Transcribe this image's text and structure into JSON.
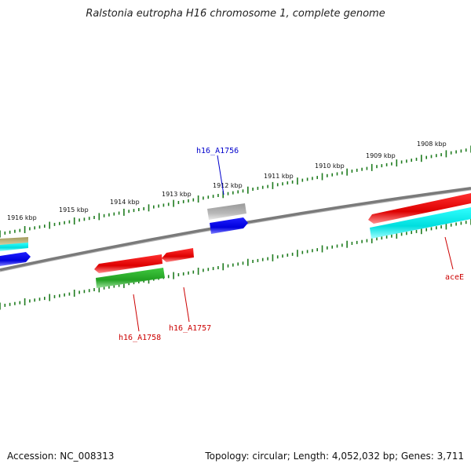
{
  "title": "Ralstonia eutropha H16 chromosome 1, complete genome",
  "footer": {
    "accession": "Accession: NC_008313",
    "topology": "Topology: circular; Length: 4,052,032 bp; Genes: 3,711"
  },
  "scale_labels": [
    "1916 kbp",
    "1915 kbp",
    "1914 kbp",
    "1913 kbp",
    "1912 kbp",
    "1911 kbp",
    "1910 kbp",
    "1909 kbp",
    "1908 kbp"
  ],
  "gene_labels": {
    "h16_A1756": "h16_A1756",
    "h16_A1757": "h16_A1757",
    "h16_A1758": "h16_A1758",
    "aceE": "aceE"
  },
  "colors": {
    "backbone": "#808080",
    "tick": "#1e7b1e",
    "red": "#e00000",
    "cyan": "#00e5e5",
    "blue": "#0000ee",
    "green": "#2fb82f",
    "gray": "#b0b0b0",
    "tan": "#b8b07a",
    "label_blue": "#0000cc",
    "label_red": "#cc0000"
  }
}
